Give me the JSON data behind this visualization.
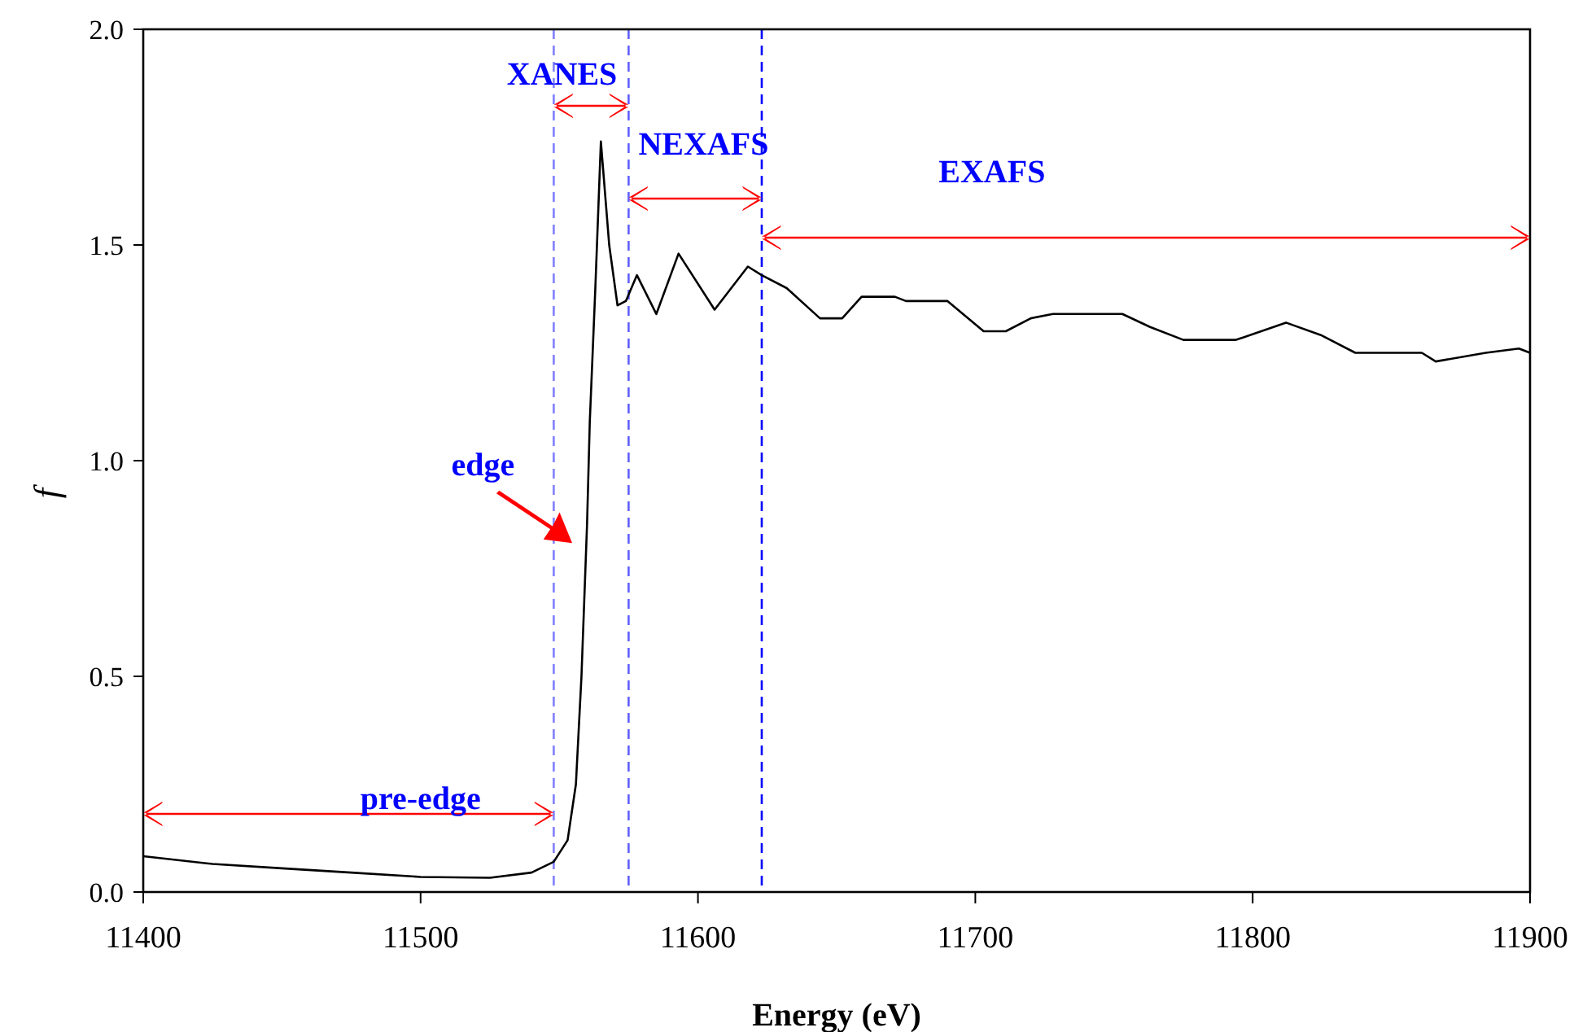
{
  "chart_data": {
    "type": "line",
    "xlabel": "Energy (eV)",
    "ylabel": "f",
    "xlim": [
      11400,
      11900
    ],
    "ylim": [
      0,
      2
    ],
    "xticks": [
      11400,
      11500,
      11600,
      11700,
      11800,
      11900
    ],
    "yticks": [
      {
        "value": 0,
        "label": "0.0"
      },
      {
        "value": 0.5,
        "label": "0.5"
      },
      {
        "value": 1,
        "label": "1.0"
      },
      {
        "value": 1.5,
        "label": "1.5"
      },
      {
        "value": 2,
        "label": "2.0"
      }
    ],
    "grid": false,
    "marker": "none",
    "series": [
      {
        "color": "#000000",
        "line_style": "solid",
        "x": [
          11400,
          11425,
          11450,
          11475,
          11500,
          11525,
          11540,
          11548,
          11553,
          11556,
          11558,
          11560,
          11561,
          11563,
          11565,
          11568,
          11571,
          11574,
          11578,
          11585,
          11593,
          11606,
          11618,
          11623,
          11632,
          11644,
          11652,
          11659,
          11671,
          11675,
          11683,
          11690,
          11703,
          11711,
          11720,
          11728,
          11741,
          11753,
          11763,
          11775,
          11794,
          11812,
          11825,
          11837,
          11861,
          11866,
          11884,
          11896,
          11900
        ],
        "values": [
          0.083,
          0.065,
          0.055,
          0.045,
          0.035,
          0.033,
          0.045,
          0.07,
          0.12,
          0.25,
          0.5,
          0.85,
          1.09,
          1.4,
          1.74,
          1.5,
          1.36,
          1.37,
          1.43,
          1.34,
          1.48,
          1.35,
          1.45,
          1.43,
          1.4,
          1.33,
          1.33,
          1.38,
          1.38,
          1.37,
          1.37,
          1.37,
          1.3,
          1.3,
          1.33,
          1.34,
          1.34,
          1.34,
          1.31,
          1.28,
          1.28,
          1.32,
          1.29,
          1.25,
          1.25,
          1.23,
          1.25,
          1.26,
          1.25
        ]
      }
    ],
    "ref_lines": [
      {
        "axis": "x",
        "value": 11548,
        "color": "#8080ff",
        "line_style": "dashed"
      },
      {
        "axis": "x",
        "value": 11575,
        "color": "#6060ff",
        "line_style": "dashed"
      },
      {
        "axis": "x",
        "value": 11623,
        "color": "#0000ff",
        "line_style": "dashed"
      }
    ],
    "annotations": [
      "pre-edge",
      "XANES",
      "NEXAFS",
      "EXAFS",
      "edge"
    ]
  }
}
